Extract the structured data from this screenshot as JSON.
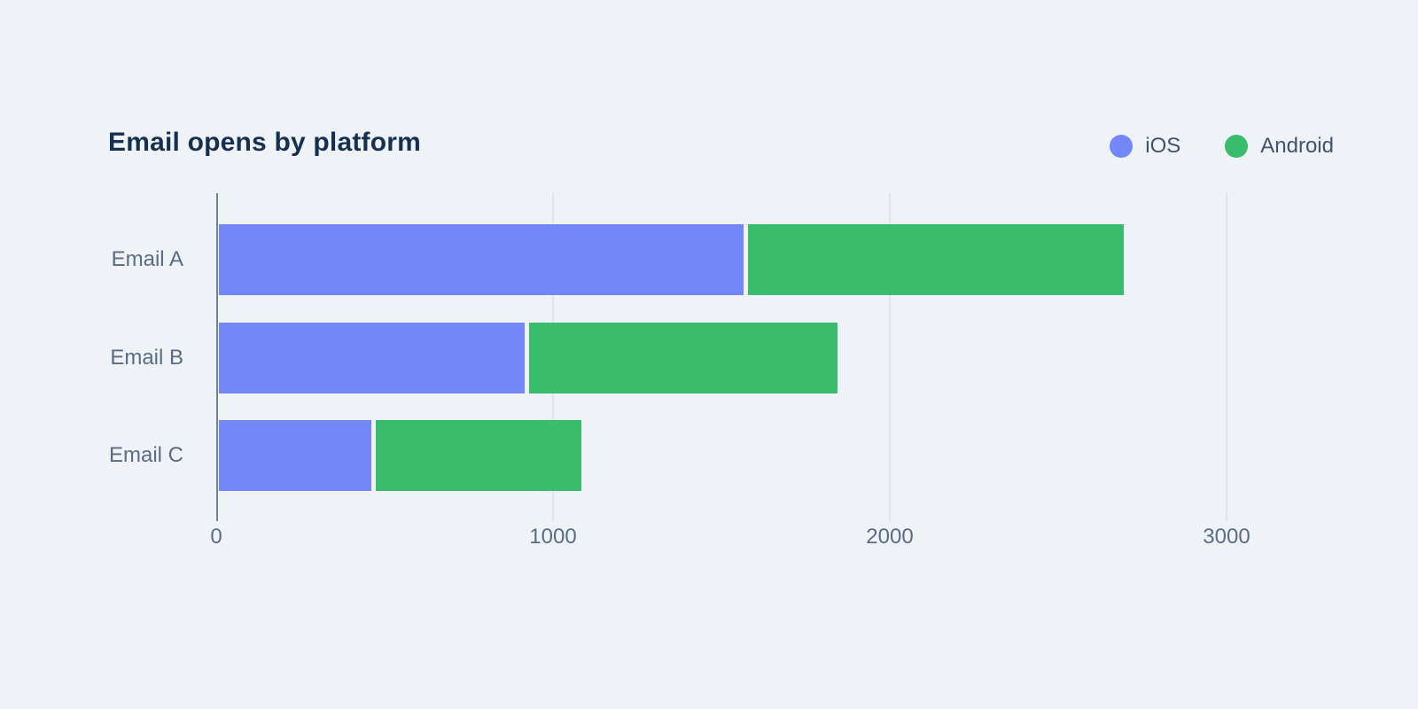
{
  "page": {
    "background_color": "#eff3f8"
  },
  "chart_data": {
    "type": "bar",
    "orientation": "horizontal",
    "stacked": true,
    "title": "Email opens by platform",
    "title_color": "#16304e",
    "categories": [
      "Email A",
      "Email B",
      "Email C"
    ],
    "series": [
      {
        "name": "iOS",
        "color": "#7487f9",
        "values": [
          1575,
          925,
          470
        ]
      },
      {
        "name": "Android",
        "color": "#39bc6c",
        "values": [
          1125,
          925,
          620
        ]
      }
    ],
    "totals": [
      2700,
      1850,
      1090
    ],
    "xticks": [
      0,
      1000,
      2000,
      3000
    ],
    "xtick_labels": [
      "0",
      "1000",
      "2000",
      "3000"
    ],
    "xlim": [
      0,
      3460
    ],
    "xlabel": "",
    "ylabel": "",
    "grid": true,
    "gridline_color": "#dfe5ee",
    "axis_line_color": "#70829a",
    "label_color": "#5a6b82",
    "legend_position": "top-right",
    "legend_text_color": "#42526b"
  }
}
